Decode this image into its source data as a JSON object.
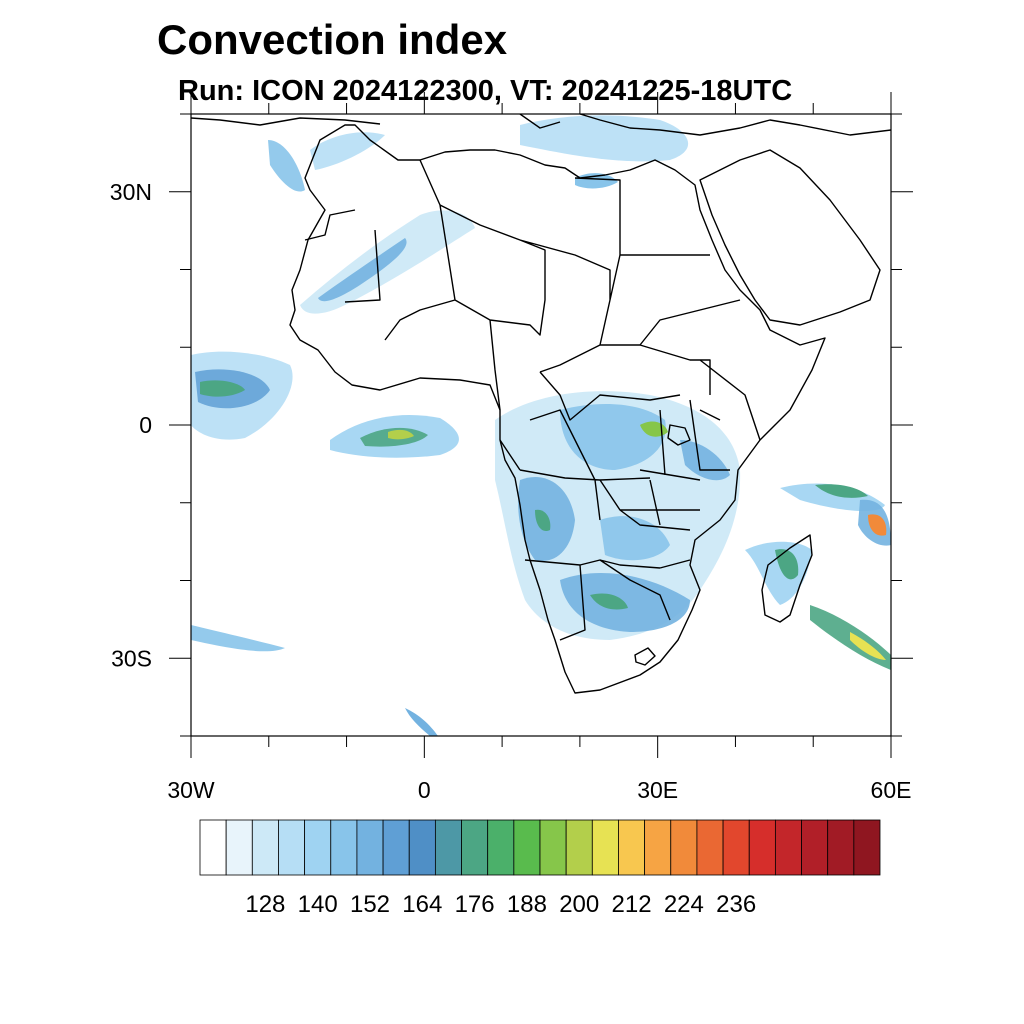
{
  "title": "Convection index",
  "subtitle": "Run: ICON 2024122300,  VT: 20241225-18UTC",
  "map": {
    "lon_range": [
      -30,
      60
    ],
    "lat_range": [
      -40,
      40
    ],
    "lon_ticks": [
      {
        "value": -30,
        "label": "30W"
      },
      {
        "value": 0,
        "label": "0"
      },
      {
        "value": 30,
        "label": "30E"
      },
      {
        "value": 60,
        "label": "60E"
      }
    ],
    "lat_ticks": [
      {
        "value": 30,
        "label": "30N"
      },
      {
        "value": 0,
        "label": "0"
      },
      {
        "value": -30,
        "label": "30S"
      }
    ]
  },
  "colorbar": {
    "colors": [
      "#ffffff",
      "#e8f4fb",
      "#cde9f7",
      "#b6def5",
      "#9fd3f2",
      "#88c4ea",
      "#73b2e0",
      "#5f9fd5",
      "#4f8fc6",
      "#4d98a6",
      "#4ca684",
      "#4bb06a",
      "#59bb4d",
      "#86c64a",
      "#b3cf4b",
      "#e7e253",
      "#f8c74f",
      "#f6a444",
      "#f18a3a",
      "#ea6833",
      "#e2472d",
      "#d62e2b",
      "#c3262a",
      "#b11f28",
      "#a11b25",
      "#8f1620"
    ],
    "tick_labels": [
      "128",
      "140",
      "152",
      "164",
      "176",
      "188",
      "200",
      "212",
      "224",
      "236"
    ]
  }
}
